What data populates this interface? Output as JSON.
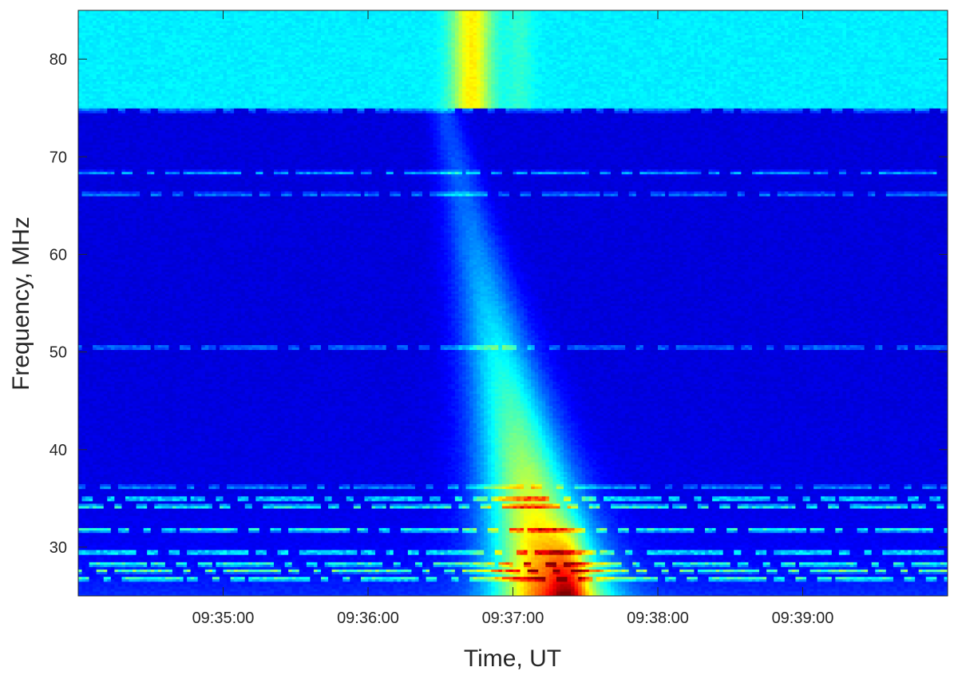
{
  "chart_data": {
    "type": "heatmap",
    "title": "",
    "xlabel": "Time, UT",
    "ylabel": "Frequency, MHz",
    "x_range": [
      "09:34:00",
      "09:40:00"
    ],
    "x_ticks": [
      "09:35:00",
      "09:36:00",
      "09:37:00",
      "09:38:00",
      "09:39:00"
    ],
    "y_range": [
      25,
      85
    ],
    "y_ticks": [
      30,
      40,
      50,
      60,
      70,
      80
    ],
    "colormap": "jet",
    "colorbar": false,
    "grid": false,
    "features": {
      "band_split_mhz": 75,
      "main_burst_time": "09:36:45",
      "secondary_burst_time": "09:37:23",
      "interference_lines_mhz": [
        26.8,
        27.6,
        28.3,
        29.5,
        31.8,
        34.2,
        35.0,
        36.2,
        50.5,
        66.2,
        68.4,
        74.8
      ]
    }
  }
}
